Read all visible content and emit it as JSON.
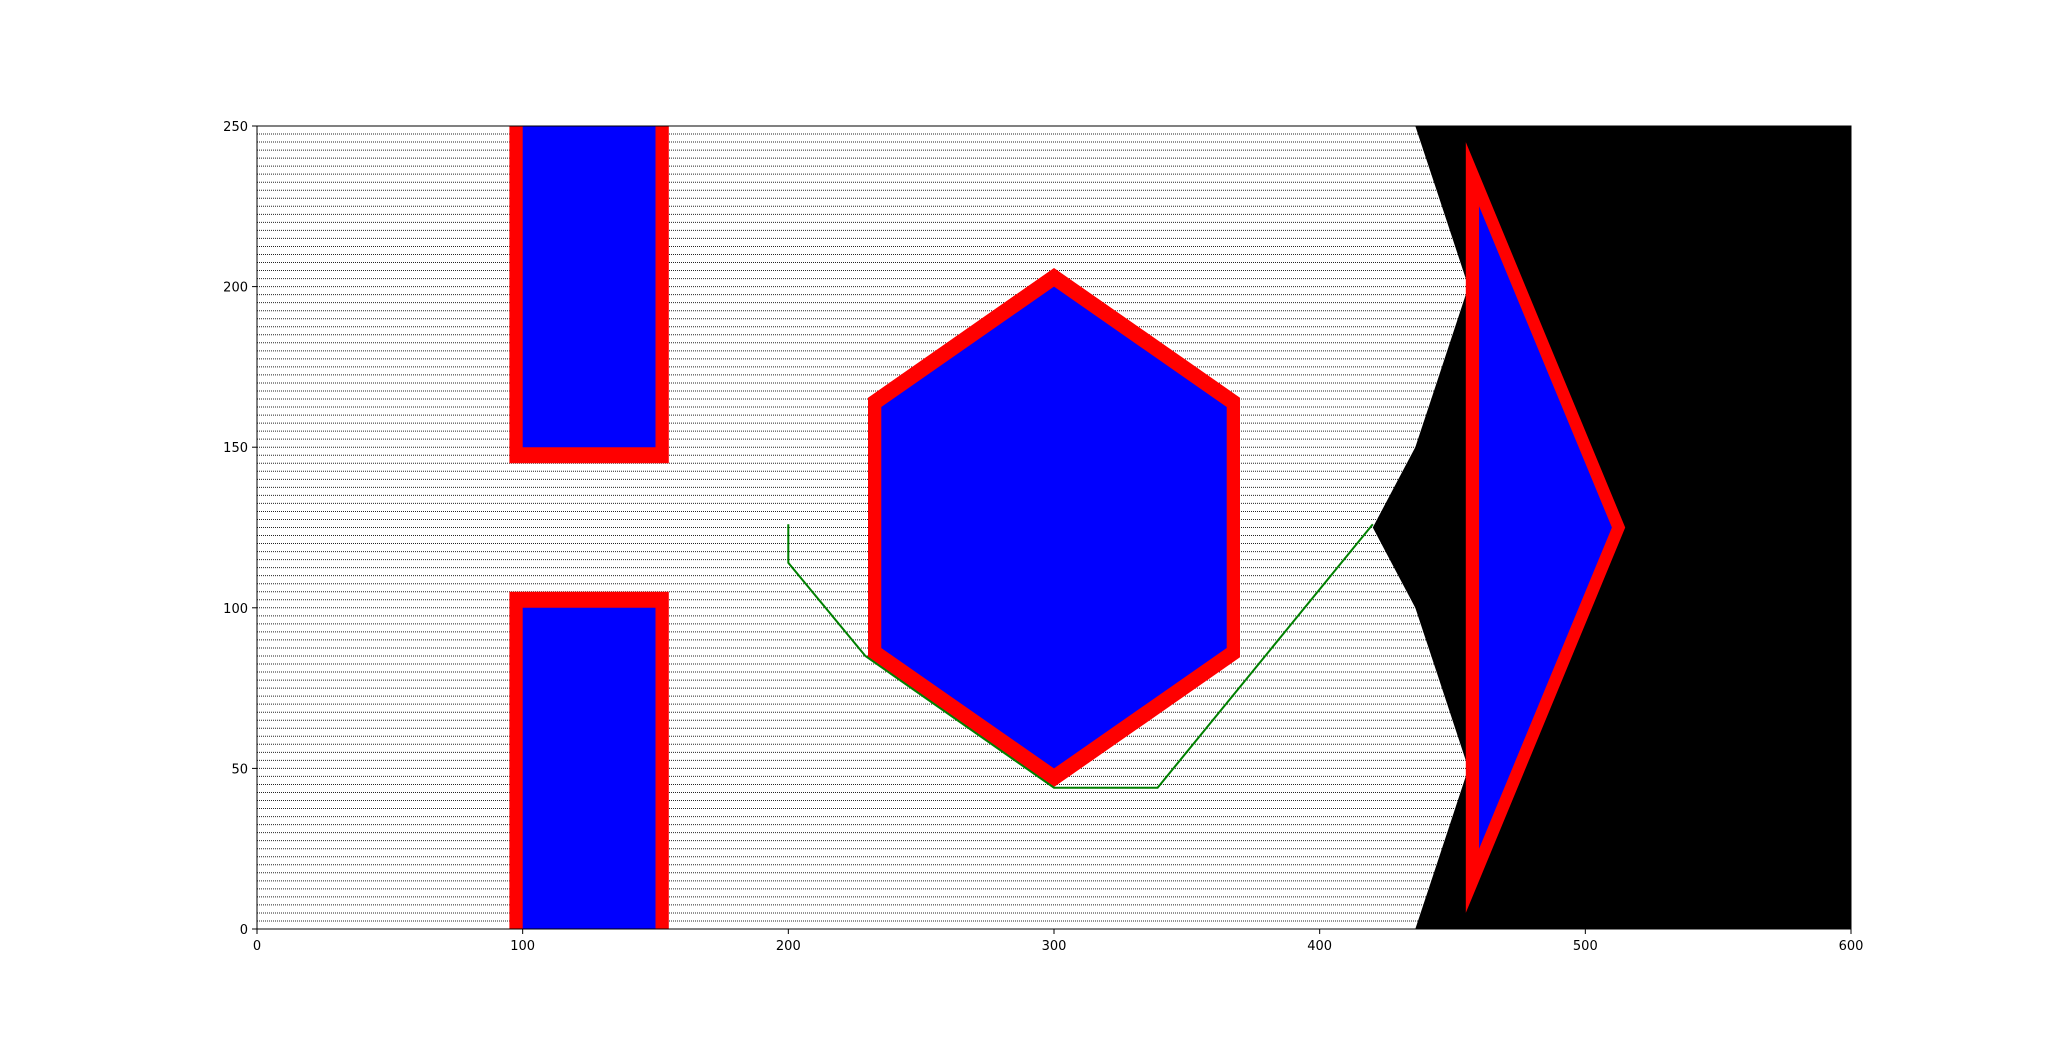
{
  "chart_data": {
    "type": "path-planning-map",
    "xlim": [
      0,
      600
    ],
    "ylim": [
      0,
      250
    ],
    "xticks": [
      0,
      100,
      200,
      300,
      400,
      500,
      600
    ],
    "yticks": [
      0,
      50,
      100,
      150,
      200,
      250
    ],
    "xtick_labels": [
      "0",
      "100",
      "200",
      "300",
      "400",
      "500",
      "600"
    ],
    "ytick_labels": [
      "0",
      "50",
      "100",
      "150",
      "200",
      "250"
    ],
    "grid": false,
    "colors": {
      "obstacle_fill": "#0000ff",
      "obstacle_clearance": "#ff0000",
      "explored_nodes": "#000000",
      "path": "#008000",
      "background": "#ffffff"
    },
    "obstacles": [
      {
        "name": "bottom-rectangle",
        "shape": "rectangle",
        "points": [
          [
            100,
            0
          ],
          [
            150,
            0
          ],
          [
            150,
            100
          ],
          [
            100,
            100
          ]
        ],
        "clearance_points": [
          [
            95,
            0
          ],
          [
            155,
            0
          ],
          [
            155,
            105
          ],
          [
            95,
            105
          ]
        ]
      },
      {
        "name": "top-rectangle",
        "shape": "rectangle",
        "points": [
          [
            100,
            150
          ],
          [
            150,
            150
          ],
          [
            150,
            250
          ],
          [
            100,
            250
          ]
        ],
        "clearance_points": [
          [
            95,
            145
          ],
          [
            155,
            145
          ],
          [
            155,
            250
          ],
          [
            95,
            250
          ]
        ]
      },
      {
        "name": "hexagon",
        "shape": "hexagon",
        "points": [
          [
            300,
            200
          ],
          [
            365,
            162.5
          ],
          [
            365,
            87.5
          ],
          [
            300,
            50
          ],
          [
            235,
            87.5
          ],
          [
            235,
            162.5
          ]
        ],
        "clearance_points": [
          [
            300,
            205.8
          ],
          [
            370,
            165.4
          ],
          [
            370,
            84.6
          ],
          [
            300,
            44.2
          ],
          [
            230,
            84.6
          ],
          [
            230,
            165.4
          ]
        ]
      },
      {
        "name": "triangle",
        "shape": "triangle",
        "points": [
          [
            460,
            225
          ],
          [
            510,
            125
          ],
          [
            460,
            25
          ]
        ],
        "clearance_points": [
          [
            455,
            245
          ],
          [
            515,
            125
          ],
          [
            455,
            5
          ]
        ]
      }
    ],
    "explored_region": {
      "x_start": 0,
      "row_step": 2.5,
      "boundary": [
        [
          0,
          436
        ],
        [
          20,
          444
        ],
        [
          40,
          452
        ],
        [
          50,
          456
        ],
        [
          60,
          452
        ],
        [
          80,
          444
        ],
        [
          100,
          436
        ],
        [
          125,
          420
        ],
        [
          150,
          436
        ],
        [
          170,
          444
        ],
        [
          190,
          452
        ],
        [
          200,
          456
        ],
        [
          210,
          452
        ],
        [
          230,
          444
        ],
        [
          250,
          436
        ]
      ]
    },
    "unexplored_region_color": "#000000",
    "path": {
      "points": [
        [
          200,
          126
        ],
        [
          200,
          114
        ],
        [
          229,
          85
        ],
        [
          300,
          44
        ],
        [
          339,
          44
        ],
        [
          420,
          126
        ]
      ]
    }
  }
}
